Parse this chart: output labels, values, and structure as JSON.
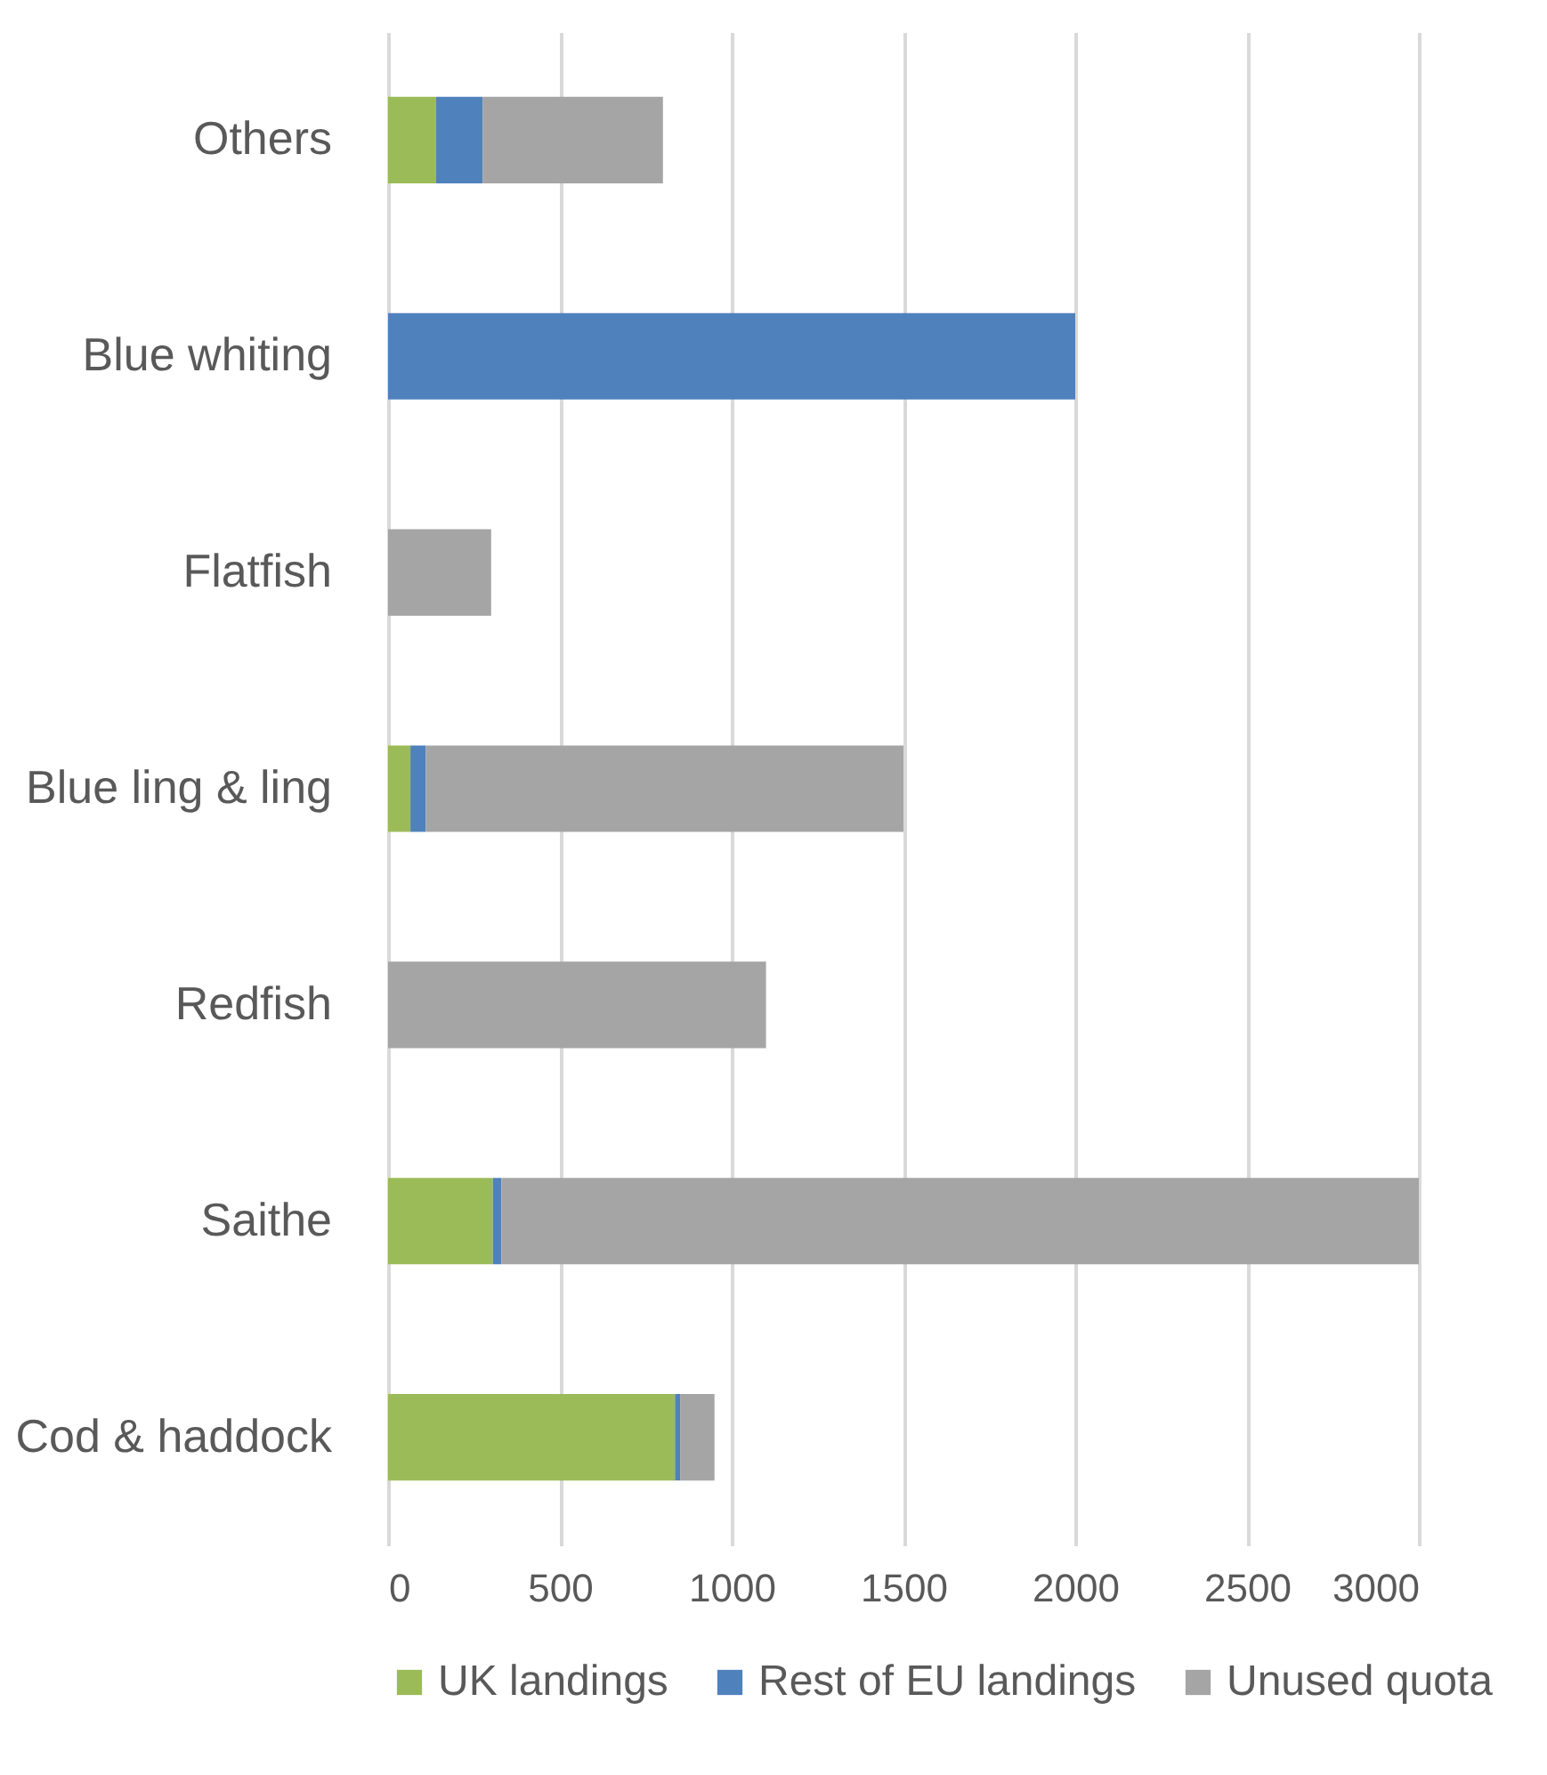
{
  "chart_data": {
    "type": "bar",
    "orientation": "horizontal",
    "stacked": true,
    "categories": [
      "Others",
      "Blue whiting",
      "Flatfish",
      "Blue ling & ling",
      "Redfish",
      "Saithe",
      "Cod & haddock"
    ],
    "series": [
      {
        "name": "UK landings",
        "color": "#9bbb59",
        "values": [
          140,
          0,
          0,
          65,
          0,
          305,
          835
        ]
      },
      {
        "name": "Rest of EU landings",
        "color": "#4f81bd",
        "values": [
          135,
          2000,
          0,
          45,
          0,
          25,
          15
        ]
      },
      {
        "name": "Unused quota",
        "color": "#a5a5a5",
        "values": [
          525,
          0,
          300,
          1390,
          1100,
          2670,
          100
        ]
      }
    ],
    "xlim": [
      0,
      3000
    ],
    "xticks": [
      0,
      500,
      1000,
      1500,
      2000,
      2500,
      3000
    ],
    "grid": "x",
    "legend": "bottom"
  }
}
